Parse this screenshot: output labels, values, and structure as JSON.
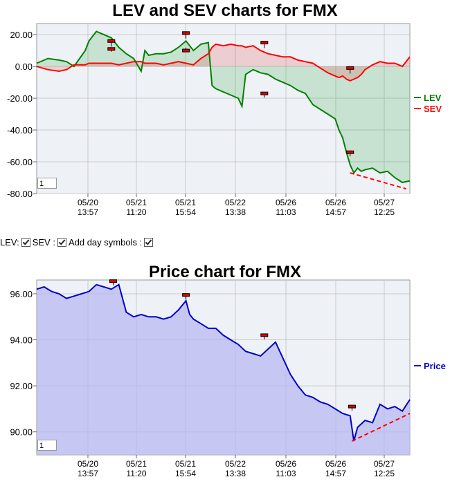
{
  "charts": {
    "lev_sev": {
      "title": "LEV and SEV charts for FMX",
      "zoom_value": "1"
    },
    "price": {
      "title": "Price chart for FMX",
      "zoom_value": "1"
    }
  },
  "controls": {
    "lev_label": "LEV:",
    "sev_label": "SEV :",
    "day_symbols_label": "Add day symbols :"
  },
  "colors": {
    "lev": "#008000",
    "sev": "#ff0000",
    "price": "#0000cc",
    "price_fill": "#ccccf5",
    "trend": "#ff0000"
  },
  "chart_data": [
    {
      "type": "line",
      "title": "LEV and SEV charts for FMX",
      "x_ticks": [
        {
          "date": "05/20",
          "time": "13:57"
        },
        {
          "date": "05/21",
          "time": "11:20"
        },
        {
          "date": "05/21",
          "time": "15:54"
        },
        {
          "date": "05/22",
          "time": "13:38"
        },
        {
          "date": "05/26",
          "time": "11:03"
        },
        {
          "date": "05/26",
          "time": "14:57"
        },
        {
          "date": "05/27",
          "time": "12:25"
        }
      ],
      "y_ticks": [
        "20.00",
        "0.00",
        "-20.00",
        "-40.00",
        "-60.00",
        "-80.00"
      ],
      "ylim": [
        -80,
        27
      ],
      "legend_position": "right",
      "series": [
        {
          "name": "LEV",
          "color": "#008000",
          "x": [
            0,
            3,
            6,
            8,
            10,
            13,
            14,
            16,
            18,
            20,
            22,
            24,
            26,
            28,
            29,
            30,
            32,
            34,
            36,
            38,
            40,
            42,
            44,
            46,
            47,
            48,
            50,
            52,
            54,
            55,
            56,
            58,
            60,
            62,
            64,
            66,
            68,
            70,
            72,
            74,
            76,
            78,
            80,
            81,
            82,
            83,
            84,
            85,
            86,
            87,
            88,
            90,
            92,
            94,
            96,
            98,
            100
          ],
          "y": [
            2,
            5,
            4,
            3,
            0,
            10,
            16,
            22,
            20,
            18,
            12,
            8,
            5,
            -3,
            10,
            7,
            8,
            8,
            9,
            12,
            16,
            10,
            14,
            15,
            -12,
            -14,
            -16,
            -18,
            -20,
            -25,
            -5,
            -2,
            -4,
            -5,
            -8,
            -10,
            -12,
            -15,
            -17,
            -24,
            -27,
            -30,
            -33,
            -40,
            -45,
            -54,
            -62,
            -67,
            -64,
            -66,
            -65,
            -64,
            -67,
            -66,
            -70,
            -73,
            -72
          ]
        },
        {
          "name": "SEV",
          "color": "#ff0000",
          "x": [
            0,
            3,
            6,
            8,
            10,
            13,
            14,
            16,
            18,
            20,
            22,
            24,
            26,
            28,
            29,
            30,
            32,
            34,
            36,
            38,
            40,
            42,
            44,
            46,
            47,
            48,
            50,
            52,
            54,
            55,
            56,
            58,
            60,
            62,
            64,
            66,
            68,
            70,
            72,
            74,
            76,
            78,
            80,
            81,
            82,
            83,
            84,
            85,
            86,
            87,
            88,
            90,
            92,
            94,
            96,
            98,
            100
          ],
          "y": [
            0,
            -2,
            -3,
            -2,
            1,
            1,
            2,
            2,
            2,
            2,
            1,
            2,
            3,
            3,
            2,
            2,
            2,
            1,
            2,
            3,
            2,
            1,
            5,
            8,
            12,
            14,
            13,
            14,
            13,
            13,
            12,
            13,
            10,
            8,
            7,
            6,
            6,
            4,
            3,
            2,
            -1,
            -4,
            -6,
            -7,
            -6,
            -8,
            -9,
            -8,
            -7,
            -5,
            -2,
            1,
            3,
            2,
            2,
            0,
            6
          ]
        }
      ],
      "annotations": [
        {
          "type": "trend-line",
          "from": {
            "x": 84,
            "y": -67
          },
          "to": {
            "x": 99,
            "y": -77
          }
        }
      ]
    },
    {
      "type": "area",
      "title": "Price chart for FMX",
      "x_ticks": [
        {
          "date": "05/20",
          "time": "13:57"
        },
        {
          "date": "05/21",
          "time": "11:20"
        },
        {
          "date": "05/21",
          "time": "15:54"
        },
        {
          "date": "05/22",
          "time": "13:38"
        },
        {
          "date": "05/26",
          "time": "11:03"
        },
        {
          "date": "05/26",
          "time": "14:57"
        },
        {
          "date": "05/27",
          "time": "12:25"
        }
      ],
      "y_ticks": [
        "96.00",
        "94.00",
        "92.00",
        "90.00"
      ],
      "ylim": [
        89.0,
        96.6
      ],
      "legend_position": "right",
      "series": [
        {
          "name": "Price",
          "color": "#0000cc",
          "x": [
            0,
            2,
            4,
            6,
            8,
            10,
            12,
            14,
            16,
            18,
            20,
            22,
            23,
            24,
            26,
            28,
            30,
            32,
            34,
            36,
            38,
            40,
            41,
            42,
            44,
            46,
            48,
            50,
            52,
            54,
            56,
            58,
            60,
            62,
            64,
            66,
            68,
            70,
            72,
            74,
            76,
            78,
            80,
            82,
            84,
            85,
            86,
            88,
            90,
            92,
            94,
            96,
            98,
            100
          ],
          "y": [
            96.2,
            96.3,
            96.1,
            96.0,
            95.8,
            95.9,
            96.0,
            96.1,
            96.4,
            96.3,
            96.2,
            96.4,
            95.8,
            95.2,
            95.0,
            95.1,
            95.0,
            95.0,
            94.9,
            95.0,
            95.3,
            95.7,
            95.1,
            94.9,
            94.7,
            94.5,
            94.5,
            94.2,
            94.0,
            93.8,
            93.5,
            93.4,
            93.3,
            93.6,
            93.9,
            93.2,
            92.5,
            92.0,
            91.6,
            91.5,
            91.3,
            91.2,
            91.0,
            90.8,
            90.7,
            89.6,
            90.2,
            90.5,
            90.4,
            91.2,
            91.0,
            91.1,
            90.9,
            91.4
          ]
        }
      ],
      "annotations": [
        {
          "type": "trend-line",
          "from": {
            "x": 84.5,
            "y": 89.6
          },
          "to": {
            "x": 100,
            "y": 90.8
          }
        }
      ]
    }
  ]
}
